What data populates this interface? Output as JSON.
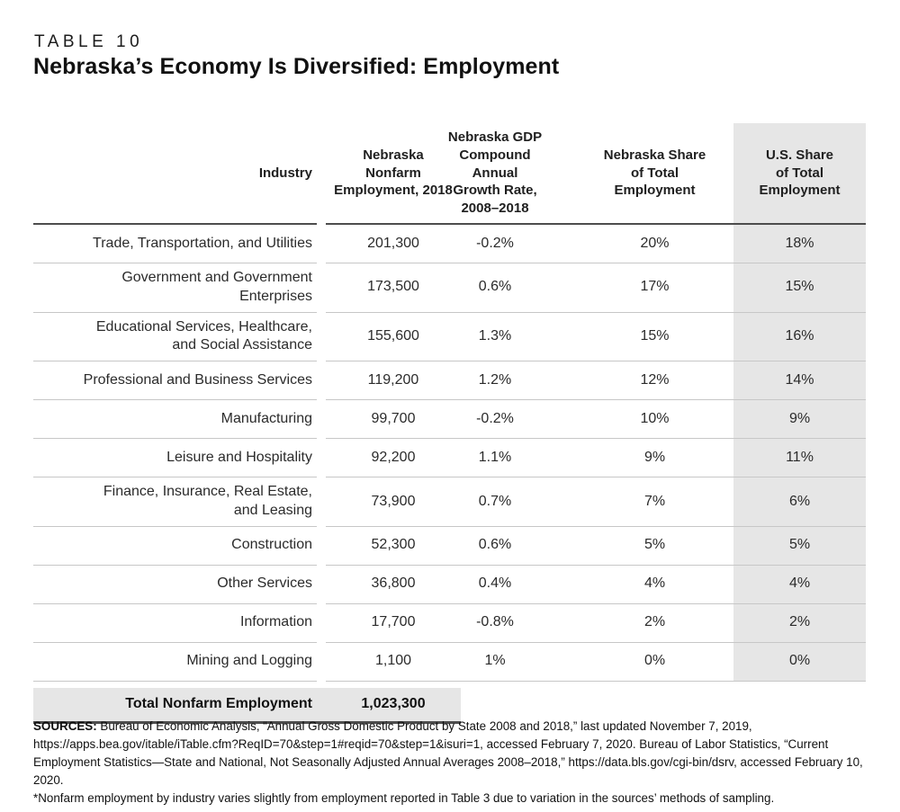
{
  "page": {
    "eyebrow": "TABLE 10",
    "title": "Nebraska’s Economy Is Diversified: Employment"
  },
  "colors": {
    "shaded_column": "#e6e6e6",
    "light_rule": "#c7c7c7",
    "dark_rule": "#4d4d4d",
    "text": "#231f20"
  },
  "table": {
    "header": {
      "industry": "Industry",
      "employment": "Nebraska\nNonfarm\nEmployment, 2018",
      "growth": "Nebraska GDP\nCompound Annual\nGrowth Rate,\n2008–2018",
      "ne_share": "Nebraska Share\nof Total\nEmployment",
      "us_share": "U.S. Share\nof Total\nEmployment"
    },
    "rows": [
      {
        "industry": "Trade, Transportation, and Utilities",
        "employment": "201,300",
        "growth": "-0.2%",
        "ne_share": "20%",
        "us_share": "18%"
      },
      {
        "industry": "Government and Government\nEnterprises",
        "employment": "173,500",
        "growth": "0.6%",
        "ne_share": "17%",
        "us_share": "15%"
      },
      {
        "industry": "Educational Services, Healthcare,\nand Social Assistance",
        "employment": "155,600",
        "growth": "1.3%",
        "ne_share": "15%",
        "us_share": "16%"
      },
      {
        "industry": "Professional and Business Services",
        "employment": "119,200",
        "growth": "1.2%",
        "ne_share": "12%",
        "us_share": "14%"
      },
      {
        "industry": "Manufacturing",
        "employment": "99,700",
        "growth": "-0.2%",
        "ne_share": "10%",
        "us_share": "9%"
      },
      {
        "industry": "Leisure and Hospitality",
        "employment": "92,200",
        "growth": "1.1%",
        "ne_share": "9%",
        "us_share": "11%"
      },
      {
        "industry": "Finance, Insurance, Real Estate,\nand Leasing",
        "employment": "73,900",
        "growth": "0.7%",
        "ne_share": "7%",
        "us_share": "6%"
      },
      {
        "industry": "Construction",
        "employment": "52,300",
        "growth": "0.6%",
        "ne_share": "5%",
        "us_share": "5%"
      },
      {
        "industry": "Other Services",
        "employment": "36,800",
        "growth": "0.4%",
        "ne_share": "4%",
        "us_share": "4%"
      },
      {
        "industry": "Information",
        "employment": "17,700",
        "growth": "-0.8%",
        "ne_share": "2%",
        "us_share": "2%"
      },
      {
        "industry": "Mining and Logging",
        "employment": "1,100",
        "growth": "1%",
        "ne_share": "0%",
        "us_share": "0%"
      }
    ],
    "total": {
      "label": "Total Nonfarm Employment",
      "value": "1,023,300"
    }
  },
  "footnote": {
    "label": "SOURCES:",
    "sources": " Bureau of Economic Analysis, “Annual Gross Domestic Product by State 2008 and 2018,” last updated November 7, 2019, https://apps.bea.gov/itable/iTable.cfm?ReqID=70&step=1#reqid=70&step=1&isuri=1, accessed February 7, 2020. Bureau of Labor Statistics, “Current Employment Statistics—State and National, Not Seasonally Adjusted Annual Averages 2008–2018,” https://data.bls.gov/cgi-bin/dsrv, accessed February 10, 2020.",
    "note": "*Nonfarm employment by industry varies slightly from employment reported in Table 3 due to variation in the sources’ methods of sampling."
  }
}
